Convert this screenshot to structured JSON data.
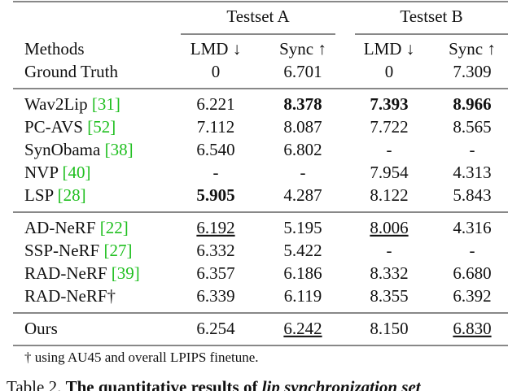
{
  "table": {
    "group_headers": [
      "Testset A",
      "Testset B"
    ],
    "columns": [
      "Methods",
      "LMD ↓",
      "Sync ↑",
      "LMD ↓",
      "Sync ↑"
    ],
    "sections": [
      [
        {
          "method": "Ground Truth",
          "cells": [
            "0",
            "6.701",
            "0",
            "7.309"
          ]
        }
      ],
      [
        {
          "method": "Wav2Lip",
          "cite": "[31]",
          "cells": [
            "6.221",
            "8.378",
            "7.393",
            "8.966"
          ],
          "bold": [
            1,
            2,
            3
          ]
        },
        {
          "method": "PC-AVS",
          "cite": "[52]",
          "cells": [
            "7.112",
            "8.087",
            "7.722",
            "8.565"
          ]
        },
        {
          "method": "SynObama",
          "cite": "[38]",
          "cells": [
            "6.540",
            "6.802",
            "-",
            "-"
          ]
        },
        {
          "method": "NVP",
          "cite": "[40]",
          "cells": [
            "-",
            "-",
            "7.954",
            "4.313"
          ]
        },
        {
          "method": "LSP",
          "cite": "[28]",
          "cells": [
            "5.905",
            "4.287",
            "8.122",
            "5.843"
          ],
          "bold": [
            0
          ]
        }
      ],
      [
        {
          "method": "AD-NeRF",
          "cite": "[22]",
          "cells": [
            "6.192",
            "5.195",
            "8.006",
            "4.316"
          ],
          "underline": [
            0,
            2
          ]
        },
        {
          "method": "SSP-NeRF",
          "cite": "[27]",
          "cells": [
            "6.332",
            "5.422",
            "-",
            "-"
          ]
        },
        {
          "method": "RAD-NeRF",
          "cite": "[39]",
          "cells": [
            "6.357",
            "6.186",
            "8.332",
            "6.680"
          ]
        },
        {
          "method": "RAD-NeRF†",
          "cells": [
            "6.339",
            "6.119",
            "8.355",
            "6.392"
          ]
        }
      ],
      [
        {
          "method": "Ours",
          "cells": [
            "6.254",
            "6.242",
            "8.150",
            "6.830"
          ],
          "underline": [
            1,
            3
          ]
        }
      ]
    ],
    "footnote": "† using AU45 and overall LPIPS finetune."
  },
  "caption": {
    "label": "Table 2.",
    "text": "The quantitative results of",
    "emph": "lip synchronization set"
  }
}
